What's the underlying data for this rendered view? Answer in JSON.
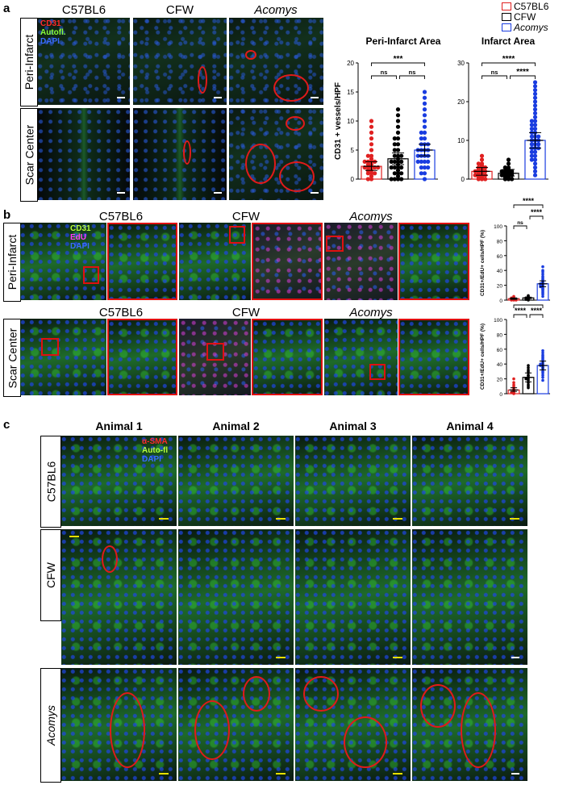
{
  "panel_labels": {
    "a": "a",
    "b": "b",
    "c": "c"
  },
  "legend": {
    "items": [
      {
        "label": "C57BL6",
        "color": "#e02020",
        "italic": false
      },
      {
        "label": "CFW",
        "color": "#000000",
        "italic": false
      },
      {
        "label": "Acomys",
        "color": "#1a3de0",
        "italic": true
      }
    ]
  },
  "panel_a": {
    "col_headers": [
      "C57BL6",
      "CFW",
      "Acomys"
    ],
    "row_labels": [
      "Peri-Infarct",
      "Scar Center"
    ],
    "channels": [
      {
        "label": "CD31",
        "color": "#ff2a2a"
      },
      {
        "label": "Autofl.",
        "color": "#8aff3a"
      },
      {
        "label": "DAPI",
        "color": "#3a6bff"
      }
    ]
  },
  "panel_b": {
    "col_headers_row1": [
      "C57BL6",
      "CFW",
      "Acomys"
    ],
    "col_headers_row2": [
      "C57BL6",
      "CFW",
      "Acomys"
    ],
    "row_labels": [
      "Peri-Infarct",
      "Scar Center"
    ],
    "channels": [
      {
        "label": "CD31",
        "color": "#b8ff3a"
      },
      {
        "label": "EdU",
        "color": "#ff3aff"
      },
      {
        "label": "DAPI",
        "color": "#3a6bff"
      }
    ]
  },
  "panel_c": {
    "col_headers": [
      "Animal 1",
      "Animal 2",
      "Animal 3",
      "Animal 4"
    ],
    "row_labels": [
      "C57BL6",
      "CFW",
      "Acomys"
    ],
    "channels": [
      {
        "label": "α-SMA",
        "color": "#ff2a2a"
      },
      {
        "label": "Auto-fl",
        "color": "#b8ff3a"
      },
      {
        "label": "DAPI",
        "color": "#3a6bff"
      }
    ]
  },
  "chart_data": [
    {
      "type": "scatter",
      "title": "Peri-Infarct Area",
      "ylabel": "CD31 + vessels/HPF",
      "ylim": [
        0,
        20
      ],
      "yticks": [
        "0",
        "5",
        "10",
        "15",
        "20"
      ],
      "categories": [
        "C57BL6",
        "CFW",
        "Acomys"
      ],
      "series": [
        {
          "name": "C57BL6",
          "color": "#e02020",
          "mean": 2.2,
          "sd_low": 1.5,
          "sd_high": 3.0,
          "values": [
            0,
            0,
            0.5,
            1,
            1,
            1,
            1.5,
            1.5,
            2,
            2,
            2,
            2,
            2,
            2.5,
            2.5,
            3,
            3,
            3,
            3,
            3.5,
            4,
            4,
            5,
            6,
            7,
            8,
            9,
            10
          ]
        },
        {
          "name": "CFW",
          "color": "#000000",
          "mean": 3.5,
          "sd_low": 2.5,
          "sd_high": 4.5,
          "values": [
            0,
            0,
            0,
            0,
            0.5,
            1,
            1,
            1,
            1.5,
            2,
            2,
            2,
            2,
            2.5,
            3,
            3,
            3,
            3,
            3.5,
            4,
            4,
            4,
            5,
            5,
            6,
            6,
            7,
            7,
            8,
            9,
            10,
            11,
            12
          ]
        },
        {
          "name": "Acomys",
          "color": "#1a3de0",
          "mean": 5.0,
          "sd_low": 4.0,
          "sd_high": 6.0,
          "values": [
            0,
            1,
            1,
            2,
            2,
            2,
            3,
            3,
            3,
            3,
            4,
            4,
            4,
            4,
            5,
            5,
            5,
            5,
            6,
            6,
            6,
            7,
            7,
            8,
            8,
            9,
            10,
            11,
            12,
            13,
            14,
            15
          ]
        }
      ],
      "comparisons": [
        {
          "from": 0,
          "to": 2,
          "label": "***"
        },
        {
          "from": 0,
          "to": 1,
          "label": "ns"
        },
        {
          "from": 1,
          "to": 2,
          "label": "ns"
        }
      ]
    },
    {
      "type": "scatter",
      "title": "Infarct  Area",
      "ylabel": "",
      "ylim": [
        0,
        30
      ],
      "yticks": [
        "0",
        "10",
        "20",
        "30"
      ],
      "categories": [
        "C57BL6",
        "CFW",
        "Acomys"
      ],
      "series": [
        {
          "name": "C57BL6",
          "color": "#e02020",
          "mean": 2.0,
          "sd_low": 1.0,
          "sd_high": 3.0,
          "values": [
            0,
            0,
            0,
            0.5,
            0.5,
            1,
            1,
            1,
            1,
            1.5,
            1.5,
            2,
            2,
            2,
            2,
            2.5,
            2.5,
            3,
            3,
            3,
            3.5,
            4,
            4,
            5,
            6
          ]
        },
        {
          "name": "CFW",
          "color": "#000000",
          "mean": 1.5,
          "sd_low": 0.8,
          "sd_high": 2.5,
          "values": [
            0,
            0,
            0,
            0.5,
            0.5,
            1,
            1,
            1,
            1,
            1.5,
            1.5,
            1.5,
            2,
            2,
            2,
            2,
            2.5,
            3,
            3,
            4,
            5
          ]
        },
        {
          "name": "Acomys",
          "color": "#1a3de0",
          "mean": 10.0,
          "sd_low": 8.0,
          "sd_high": 12.0,
          "values": [
            1,
            2,
            3,
            4,
            5,
            5,
            6,
            6,
            7,
            7,
            8,
            8,
            8,
            9,
            9,
            9,
            10,
            10,
            10,
            11,
            11,
            11,
            12,
            12,
            13,
            13,
            14,
            14,
            15,
            15,
            16,
            17,
            18,
            19,
            20,
            21,
            22,
            23,
            24,
            25
          ]
        }
      ],
      "comparisons": [
        {
          "from": 0,
          "to": 2,
          "label": "****"
        },
        {
          "from": 0,
          "to": 1,
          "label": "ns"
        },
        {
          "from": 1,
          "to": 2,
          "label": "****"
        }
      ]
    },
    {
      "type": "scatter",
      "title": "",
      "ylabel": "CD31+/EdU+ cells/HPF (%)",
      "ylim": [
        0,
        100
      ],
      "yticks": [
        "0",
        "20",
        "40",
        "60",
        "80",
        "100"
      ],
      "categories": [
        "C57BL6",
        "CFW",
        "Acomys"
      ],
      "series": [
        {
          "name": "C57BL6",
          "color": "#e02020",
          "mean": 2,
          "sd_low": 1,
          "sd_high": 3,
          "values": [
            0,
            0,
            0,
            1,
            1,
            2,
            2,
            3,
            3,
            4,
            5
          ]
        },
        {
          "name": "CFW",
          "color": "#000000",
          "mean": 3,
          "sd_low": 2,
          "sd_high": 4,
          "values": [
            0,
            1,
            1,
            2,
            2,
            3,
            3,
            4,
            5,
            6
          ]
        },
        {
          "name": "Acomys",
          "color": "#1a3de0",
          "mean": 22,
          "sd_low": 18,
          "sd_high": 26,
          "values": [
            5,
            8,
            10,
            12,
            14,
            15,
            16,
            18,
            18,
            20,
            20,
            22,
            22,
            24,
            25,
            26,
            28,
            30,
            32,
            35,
            38,
            40,
            45
          ]
        }
      ],
      "comparisons": [
        {
          "from": 0,
          "to": 2,
          "label": "****"
        },
        {
          "from": 0,
          "to": 1,
          "label": "ns"
        },
        {
          "from": 1,
          "to": 2,
          "label": "****"
        }
      ]
    },
    {
      "type": "scatter",
      "title": "",
      "ylabel": "CD31+/EdU+ cells/HPF (%)",
      "ylim": [
        0,
        100
      ],
      "yticks": [
        "0",
        "20",
        "40",
        "60",
        "80",
        "100"
      ],
      "categories": [
        "C57BL6",
        "CFW",
        "Acomys"
      ],
      "series": [
        {
          "name": "C57BL6",
          "color": "#e02020",
          "mean": 5,
          "sd_low": 3,
          "sd_high": 8,
          "values": [
            0,
            1,
            2,
            2,
            3,
            4,
            5,
            6,
            8,
            10,
            12,
            15,
            20
          ]
        },
        {
          "name": "CFW",
          "color": "#000000",
          "mean": 22,
          "sd_low": 16,
          "sd_high": 28,
          "values": [
            8,
            10,
            12,
            15,
            18,
            20,
            20,
            22,
            24,
            25,
            28,
            30,
            32,
            35,
            38
          ]
        },
        {
          "name": "Acomys",
          "color": "#1a3de0",
          "mean": 38,
          "sd_low": 32,
          "sd_high": 44,
          "values": [
            18,
            22,
            25,
            28,
            30,
            32,
            34,
            35,
            36,
            38,
            38,
            40,
            40,
            42,
            44,
            46,
            48,
            50,
            52,
            55,
            58
          ]
        }
      ],
      "comparisons": [
        {
          "from": 0,
          "to": 2,
          "label": "****"
        },
        {
          "from": 0,
          "to": 1,
          "label": "****"
        },
        {
          "from": 1,
          "to": 2,
          "label": "****"
        }
      ]
    }
  ]
}
